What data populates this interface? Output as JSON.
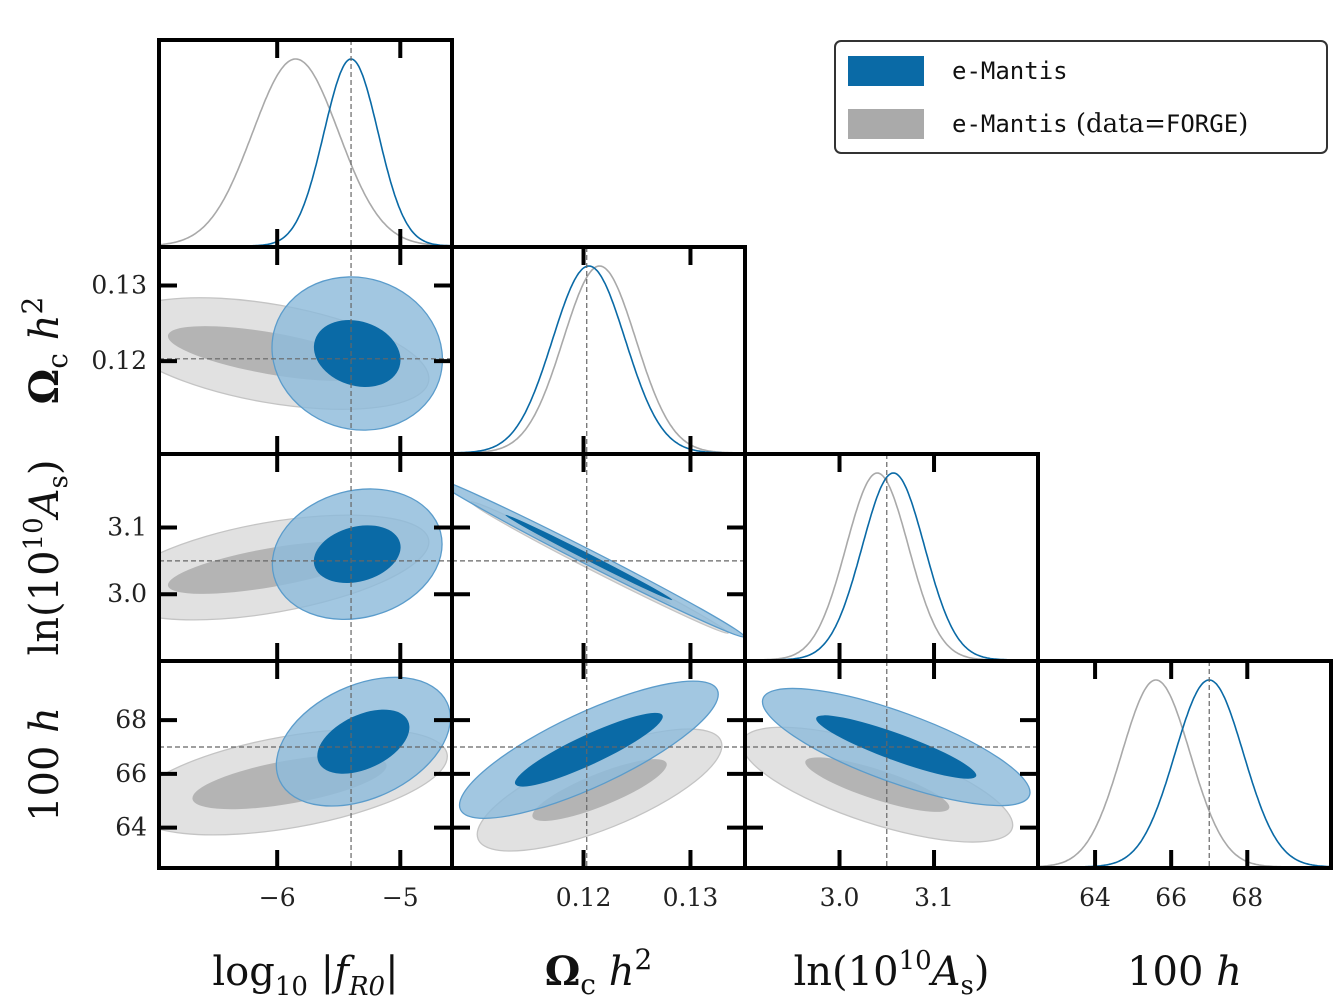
{
  "chart_data": {
    "type": "corner",
    "parameters": [
      {
        "key": "logf",
        "label": "log10|fR0|",
        "range": [
          -6.96,
          -4.58
        ],
        "ticks": [
          -6,
          -5
        ],
        "tick_labels": [
          "−6",
          "−5"
        ],
        "truth": -5.4
      },
      {
        "key": "och2",
        "label": "Omega_c h^2",
        "range": [
          0.1077,
          0.1351
        ],
        "ticks": [
          0.12,
          0.13
        ],
        "tick_labels": [
          "0.12",
          "0.13"
        ],
        "truth": 0.1203
      },
      {
        "key": "lnas",
        "label": "ln(10^10 A_s)",
        "range": [
          2.9,
          3.21
        ],
        "ticks": [
          3.0,
          3.1
        ],
        "tick_labels": [
          "3.0",
          "3.1"
        ],
        "truth": 3.05
      },
      {
        "key": "h",
        "label": "100 h",
        "range": [
          62.5,
          70.2
        ],
        "ticks": [
          64,
          66,
          68
        ],
        "tick_labels": [
          "64",
          "66",
          "68"
        ],
        "truth": 67.0
      }
    ],
    "series": [
      {
        "name": "e-Mantis",
        "color": "#0a6aa6",
        "marginals": [
          {
            "mean": -5.4,
            "sigma": 0.22
          },
          {
            "mean": 0.1205,
            "sigma": 0.0034
          },
          {
            "mean": 3.057,
            "sigma": 0.033
          },
          {
            "mean": 67.0,
            "sigma": 0.9
          }
        ],
        "contours": [
          {
            "x": "logf",
            "y": "och2",
            "cx": -5.35,
            "cy": 0.121,
            "w68": 0.72,
            "h68": 0.0085,
            "w95": 1.4,
            "h95": 0.02,
            "angle": -18
          },
          {
            "x": "logf",
            "y": "lnas",
            "cx": -5.35,
            "cy": 3.06,
            "w68": 0.72,
            "h68": 0.082,
            "w95": 1.4,
            "h95": 0.19,
            "angle": 15
          },
          {
            "x": "logf",
            "y": "h",
            "cx": -5.3,
            "cy": 67.2,
            "w68": 0.8,
            "h68": 2.0,
            "w95": 1.5,
            "h95": 4.2,
            "angle": 25
          },
          {
            "x": "och2",
            "y": "lnas",
            "cx": 0.1205,
            "cy": 3.055,
            "w68": 0.0175,
            "h68": 0.01,
            "w95": 0.0327,
            "h95": 0.022,
            "angle": -27
          },
          {
            "x": "och2",
            "y": "h",
            "cx": 0.1205,
            "cy": 66.9,
            "w68": 0.0152,
            "h68": 1.1,
            "w95": 0.0265,
            "h95": 2.75,
            "angle": 25
          },
          {
            "x": "lnas",
            "y": "h",
            "cx": 3.06,
            "cy": 67.0,
            "w68": 0.18,
            "h68": 1.0,
            "w95": 0.3,
            "h95": 2.6,
            "angle": -20
          }
        ]
      },
      {
        "name": "e-Mantis (data=FORGE)",
        "color": "#a9a9a9",
        "marginals": [
          {
            "mean": -5.85,
            "sigma": 0.35
          },
          {
            "mean": 0.1215,
            "sigma": 0.0034
          },
          {
            "mean": 3.04,
            "sigma": 0.033
          },
          {
            "mean": 65.6,
            "sigma": 0.9
          }
        ],
        "contours": [
          {
            "x": "logf",
            "y": "och2",
            "cx": -6.05,
            "cy": 0.121,
            "w68": 1.7,
            "h68": 0.0055,
            "w95": 2.6,
            "h95": 0.013,
            "angle": -10
          },
          {
            "x": "logf",
            "y": "lnas",
            "cx": -6.05,
            "cy": 3.04,
            "w68": 1.7,
            "h68": 0.058,
            "w95": 2.6,
            "h95": 0.135,
            "angle": 10
          },
          {
            "x": "logf",
            "y": "h",
            "cx": -5.9,
            "cy": 65.7,
            "w68": 1.6,
            "h68": 1.6,
            "w95": 2.6,
            "h95": 3.4,
            "angle": 10
          },
          {
            "x": "och2",
            "y": "lnas",
            "cx": 0.1215,
            "cy": 3.04,
            "w68": 0.015,
            "h68": 0.009,
            "w95": 0.027,
            "h95": 0.018,
            "angle": -27
          },
          {
            "x": "och2",
            "y": "h",
            "cx": 0.1215,
            "cy": 65.4,
            "w68": 0.0135,
            "h68": 1.2,
            "w95": 0.0245,
            "h95": 2.9,
            "angle": 22
          },
          {
            "x": "lnas",
            "y": "h",
            "cx": 3.04,
            "cy": 65.6,
            "w68": 0.16,
            "h68": 1.1,
            "w95": 0.3,
            "h95": 2.9,
            "angle": -18
          }
        ]
      }
    ],
    "legend_position": "top-right"
  },
  "legend": {
    "entry1": {
      "code": "e-Mantis"
    },
    "entry2": {
      "code": "e-Mantis",
      "paren_open": " (data=",
      "code2": "FORGE",
      "paren_close": ")"
    }
  },
  "colors": {
    "blue_line": "#0a6aa6",
    "blue_fill_68": "#0a6aa6",
    "blue_fill_95": "#8dbbda",
    "gray_line": "#a9a9a9",
    "gray_fill_68": "#a9a9a9",
    "gray_fill_95": "#dcdcdc",
    "truth_line": "#666666"
  }
}
